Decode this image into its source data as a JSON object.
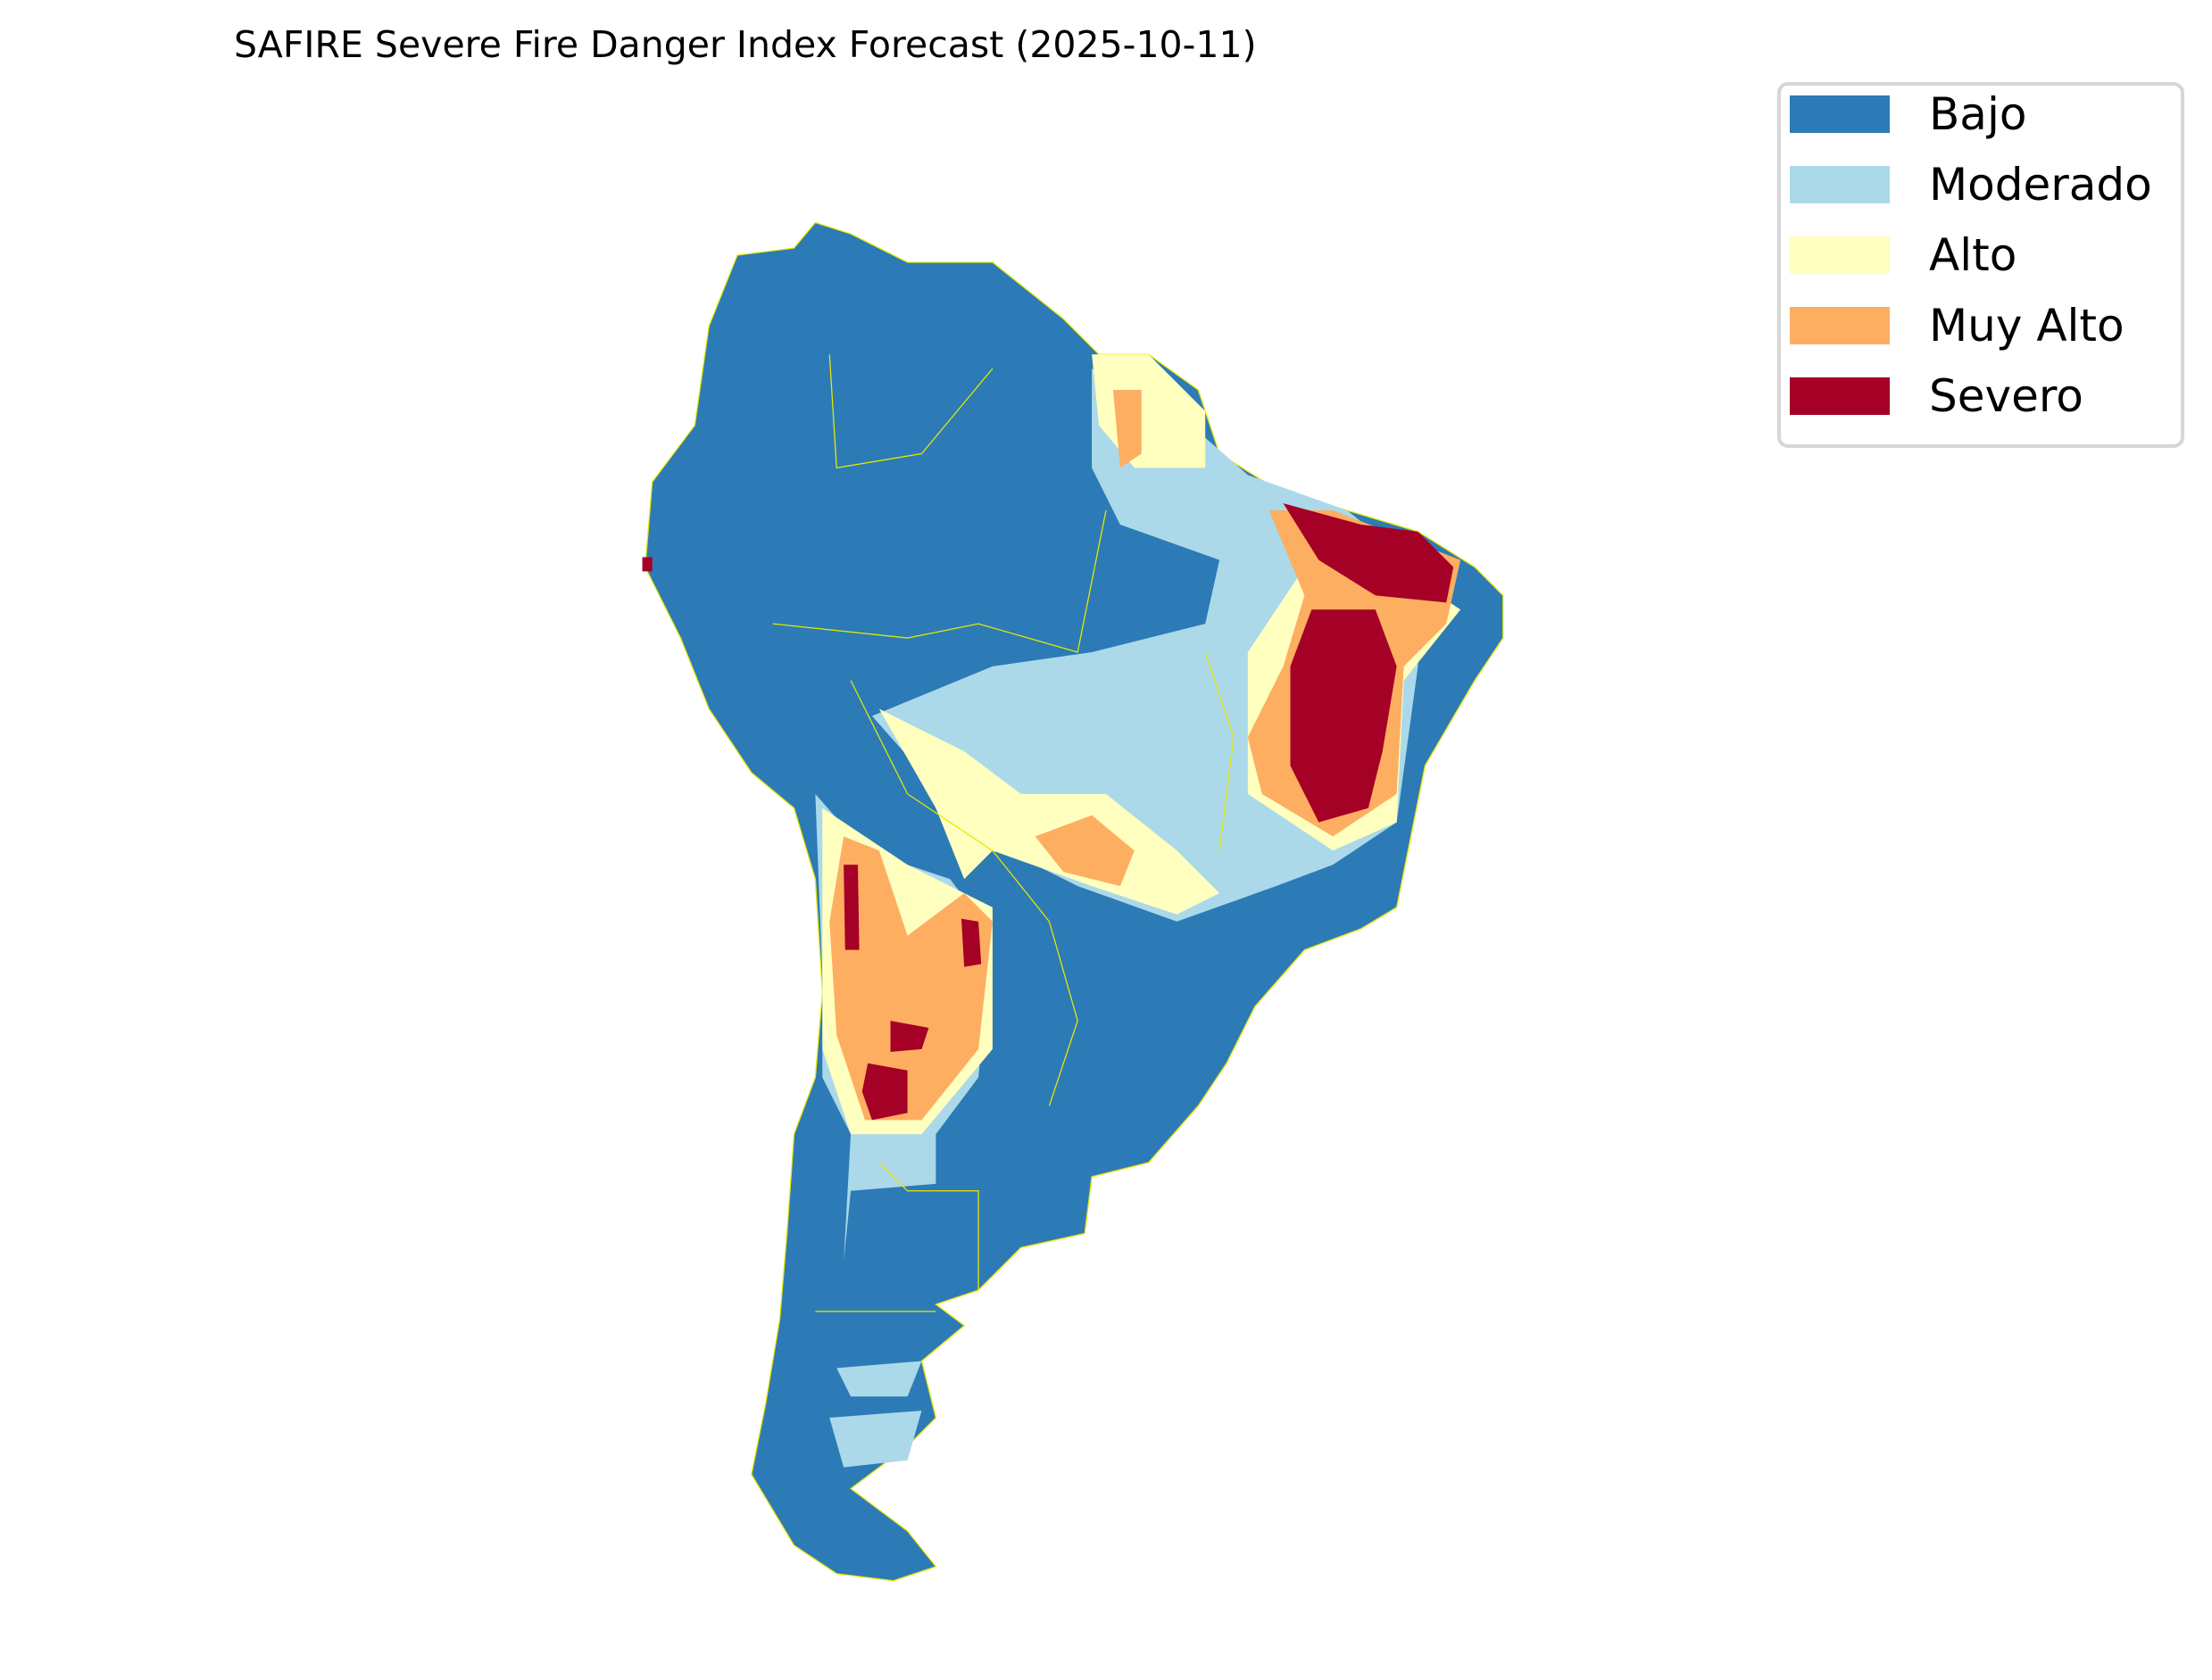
{
  "title": "SAFIRE Severe Fire Danger Index Forecast (2025-10-11)",
  "chart_data": {
    "type": "map",
    "title": "SAFIRE Severe Fire Danger Index Forecast (2025-10-11)",
    "region": "South America",
    "legend_placement": "top-right",
    "legend": [
      {
        "label": "Bajo",
        "color": "#2c7bb6"
      },
      {
        "label": "Moderado",
        "color": "#abd9e9"
      },
      {
        "label": "Alto",
        "color": "#ffffbf"
      },
      {
        "label": "Muy Alto",
        "color": "#fdae61"
      },
      {
        "label": "Severo",
        "color": "#a50026"
      }
    ],
    "border_color": "#e8e800"
  }
}
